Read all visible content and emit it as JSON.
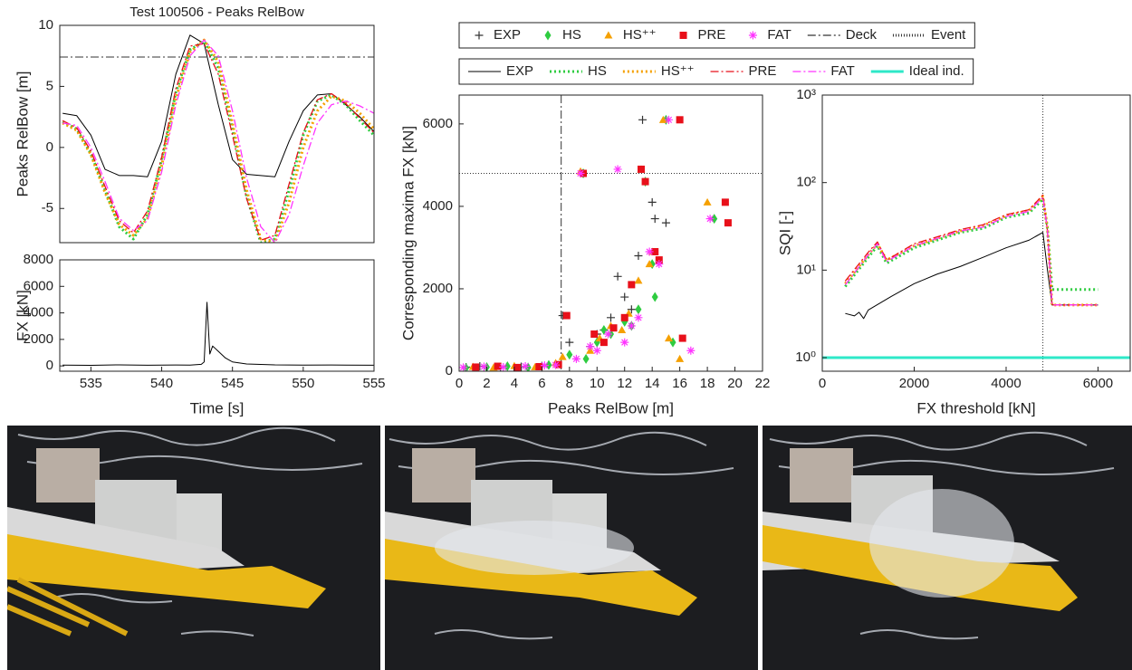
{
  "chart_data": [
    {
      "type": "line",
      "title": "Test 100506 - Peaks RelBow",
      "ylabel": "Peaks RelBow [m]",
      "x": [
        533,
        534,
        535,
        536,
        537,
        538,
        539,
        540,
        541,
        542,
        543,
        544,
        545,
        546,
        547,
        548,
        549,
        550,
        551,
        552,
        553,
        554,
        555
      ],
      "xlim": [
        532.8,
        555
      ],
      "ylim": [
        -7.8,
        10
      ],
      "yticks": [
        -5,
        0,
        5,
        10
      ],
      "reference_lines": [
        {
          "axis": "y",
          "value": 7.4,
          "line_style": "dashdot"
        }
      ],
      "series": [
        {
          "name": "EXP",
          "color": "#000000",
          "line_style": "solid",
          "values": [
            2.8,
            2.6,
            1.0,
            -1.8,
            -2.3,
            -2.3,
            -2.4,
            0.5,
            6.0,
            9.2,
            8.5,
            3.5,
            -1.0,
            -2.2,
            -2.3,
            -2.4,
            0.5,
            3.0,
            4.3,
            4.4,
            3.5,
            2.5,
            1.3
          ]
        },
        {
          "name": "HS",
          "color": "#2ecc40",
          "line_style": "dotted",
          "values": [
            2.1,
            1.5,
            -0.5,
            -3.5,
            -6.5,
            -7.5,
            -5.5,
            -1.0,
            4.5,
            8.0,
            8.7,
            6.5,
            1.5,
            -4.0,
            -7.8,
            -7.5,
            -3.5,
            1.0,
            3.8,
            4.3,
            3.5,
            2.2,
            1.0
          ]
        },
        {
          "name": "HS⁺⁺",
          "color": "#f5a000",
          "line_style": "dotted",
          "values": [
            2.0,
            1.4,
            -0.6,
            -3.7,
            -6.3,
            -7.2,
            -5.8,
            -1.5,
            4.0,
            7.8,
            8.8,
            7.0,
            2.0,
            -3.5,
            -7.5,
            -7.8,
            -4.5,
            0.0,
            3.0,
            4.2,
            3.8,
            2.8,
            1.5
          ]
        },
        {
          "name": "PRE",
          "color": "#e8101a",
          "line_style": "dashdot",
          "values": [
            2.2,
            1.6,
            -0.3,
            -3.2,
            -6.0,
            -7.0,
            -5.2,
            -0.8,
            4.8,
            8.3,
            8.5,
            6.0,
            1.0,
            -4.2,
            -7.6,
            -7.2,
            -3.0,
            1.2,
            3.9,
            4.4,
            3.6,
            2.4,
            1.2
          ]
        },
        {
          "name": "FAT",
          "color": "#ff33ff",
          "line_style": "dashdot",
          "values": [
            2.0,
            1.8,
            0.0,
            -2.8,
            -5.8,
            -6.8,
            -6.0,
            -2.0,
            3.5,
            7.5,
            8.8,
            7.5,
            3.0,
            -2.5,
            -6.5,
            -7.8,
            -5.5,
            -1.5,
            2.0,
            3.5,
            3.8,
            3.4,
            2.8
          ]
        }
      ]
    },
    {
      "type": "line",
      "xlabel": "Time [s]",
      "ylabel": "FX [kN]",
      "x": [
        533,
        535,
        537,
        539,
        541,
        542,
        542.8,
        543,
        543.2,
        543.4,
        543.6,
        544,
        544.5,
        545,
        546,
        548,
        550,
        552,
        555
      ],
      "xlim": [
        532.8,
        555
      ],
      "xticks": [
        535,
        540,
        545,
        550,
        555
      ],
      "ylim": [
        -400,
        8000
      ],
      "yticks": [
        0,
        2000,
        4000,
        6000,
        8000
      ],
      "series": [
        {
          "color": "#000000",
          "line_style": "solid",
          "values": [
            60,
            40,
            80,
            50,
            70,
            60,
            120,
            300,
            4800,
            900,
            1500,
            1100,
            600,
            300,
            150,
            80,
            60,
            70,
            50
          ]
        }
      ]
    },
    {
      "type": "scatter",
      "xlabel": "Peaks RelBow [m]",
      "ylabel": "Corresponding maxima FX [kN]",
      "xlim": [
        0,
        22
      ],
      "xticks": [
        0,
        2,
        4,
        6,
        8,
        10,
        12,
        14,
        16,
        18,
        20,
        22
      ],
      "ylim": [
        0,
        6700
      ],
      "yticks": [
        0,
        2000,
        4000,
        6000
      ],
      "legend": "above",
      "reference_lines": [
        {
          "name": "Deck",
          "axis": "x",
          "value": 7.4,
          "line_style": "dashdot"
        },
        {
          "name": "Event",
          "axis": "y",
          "value": 4800,
          "line_style": "dotted"
        }
      ],
      "series": [
        {
          "name": "EXP",
          "color": "#333333",
          "marker": "plus",
          "x": [
            0.5,
            1.5,
            3,
            4.5,
            6,
            7.5,
            8,
            9,
            9.5,
            10,
            10.5,
            11,
            11.5,
            12,
            12.5,
            13,
            13.3,
            14,
            14.2,
            15
          ],
          "values": [
            100,
            120,
            90,
            110,
            130,
            1350,
            700,
            4800,
            600,
            900,
            1000,
            1300,
            2300,
            1800,
            1500,
            2800,
            6100,
            4100,
            3700,
            3600
          ]
        },
        {
          "name": "HS",
          "color": "#2ecc40",
          "marker": "diamond",
          "x": [
            0.5,
            2,
            3.5,
            5,
            6.5,
            8,
            9,
            9.2,
            10,
            10.5,
            11,
            12,
            12.5,
            13,
            13.5,
            14.2,
            15,
            18.5,
            14,
            15.5
          ],
          "values": [
            80,
            100,
            120,
            90,
            150,
            400,
            4800,
            300,
            700,
            1000,
            900,
            1200,
            1100,
            1500,
            4600,
            1800,
            6100,
            3700,
            2600,
            700
          ]
        },
        {
          "name": "HS⁺⁺",
          "color": "#f5a000",
          "marker": "triangle",
          "x": [
            1,
            2.5,
            4,
            5.5,
            7,
            7.5,
            8.8,
            9.5,
            10.2,
            11,
            11.8,
            12.3,
            13,
            13.2,
            14,
            14.8,
            15.2,
            18,
            13.8,
            16
          ],
          "values": [
            110,
            90,
            130,
            100,
            200,
            350,
            4850,
            500,
            800,
            1100,
            1000,
            1400,
            2200,
            4900,
            2900,
            6100,
            800,
            4100,
            2600,
            300
          ]
        },
        {
          "name": "PRE",
          "color": "#e8101a",
          "marker": "square",
          "x": [
            1.2,
            2.8,
            4.2,
            5.8,
            7.2,
            7.8,
            9,
            9.8,
            10.5,
            11.2,
            12,
            12.5,
            13.2,
            13.5,
            14.2,
            16,
            16.2,
            19.5,
            19.3,
            14.5
          ],
          "values": [
            100,
            120,
            90,
            110,
            160,
            1350,
            4800,
            900,
            700,
            1050,
            1300,
            2100,
            4900,
            4600,
            2900,
            6100,
            800,
            3600,
            4100,
            2700
          ]
        },
        {
          "name": "FAT",
          "color": "#ff33ff",
          "marker": "asterisk",
          "x": [
            0.3,
            1.8,
            3.2,
            4.8,
            6.2,
            7,
            8.5,
            8.8,
            9.5,
            10,
            10.8,
            11.5,
            12,
            12.5,
            13,
            13.8,
            14.5,
            15.2,
            18.2,
            16.8
          ],
          "values": [
            90,
            110,
            100,
            120,
            140,
            150,
            300,
            4800,
            600,
            500,
            900,
            4900,
            700,
            1100,
            1300,
            2900,
            2600,
            6100,
            3700,
            500
          ]
        }
      ]
    },
    {
      "type": "line",
      "xlabel": "FX threshold [kN]",
      "ylabel": "SQI [-]",
      "log_y": true,
      "legend": "above",
      "xlim": [
        0,
        6700
      ],
      "xticks": [
        0,
        2000,
        4000,
        6000
      ],
      "ylim": [
        0.7,
        1000
      ],
      "yticks": [
        {
          "value": 1,
          "label": "10⁰"
        },
        {
          "value": 10,
          "label": "10¹"
        },
        {
          "value": 100,
          "label": "10²"
        },
        {
          "value": 1000,
          "label": "10³"
        }
      ],
      "reference_lines": [
        {
          "axis": "x",
          "value": 4800,
          "line_style": "dotted"
        }
      ],
      "series": [
        {
          "name": "EXP",
          "color": "#000000",
          "line_style": "solid",
          "x": [
            500,
            700,
            800,
            900,
            1000,
            1500,
            2000,
            2500,
            3000,
            3500,
            4000,
            4500,
            4800,
            4900,
            5000,
            6000
          ],
          "values": [
            3.2,
            3.0,
            3.3,
            2.8,
            3.5,
            5,
            7,
            9,
            11,
            14,
            18,
            22,
            27,
            10,
            4,
            4
          ]
        },
        {
          "name": "HS",
          "color": "#2ecc40",
          "line_style": "dotted",
          "x": [
            500,
            1000,
            1200,
            1400,
            2000,
            2500,
            3000,
            3500,
            4000,
            4500,
            4800,
            4900,
            5000,
            6000
          ],
          "values": [
            6.5,
            14,
            19,
            12,
            18,
            22,
            27,
            30,
            40,
            45,
            65,
            30,
            6,
            6
          ]
        },
        {
          "name": "HS⁺⁺",
          "color": "#f5a000",
          "line_style": "dotted",
          "x": [
            500,
            1000,
            1200,
            1400,
            2000,
            2500,
            3000,
            3500,
            4000,
            4500,
            4800,
            4900,
            5000,
            6000
          ],
          "values": [
            7,
            15,
            20,
            13,
            19,
            23,
            28,
            32,
            42,
            48,
            70,
            30,
            4,
            4
          ]
        },
        {
          "name": "PRE",
          "color": "#e8101a",
          "line_style": "dashdot",
          "x": [
            500,
            1000,
            1200,
            1400,
            2000,
            2500,
            3000,
            3500,
            4000,
            4500,
            4800,
            4900,
            5000,
            6000
          ],
          "values": [
            7.5,
            16,
            21,
            13,
            20,
            24,
            29,
            33,
            43,
            49,
            72,
            28,
            4,
            4
          ]
        },
        {
          "name": "FAT",
          "color": "#ff33ff",
          "line_style": "dashdot",
          "x": [
            500,
            1000,
            1200,
            1400,
            2000,
            2500,
            3000,
            3500,
            4000,
            4500,
            4800,
            4900,
            5000,
            6000
          ],
          "values": [
            6.8,
            15,
            20,
            12.5,
            19,
            23,
            28,
            31,
            41,
            47,
            68,
            29,
            4,
            4
          ]
        },
        {
          "name": "Ideal ind.",
          "color": "#2ee8c8",
          "line_style": "thick",
          "x": [
            0,
            6700
          ],
          "values": [
            1,
            1
          ]
        }
      ]
    }
  ]
}
